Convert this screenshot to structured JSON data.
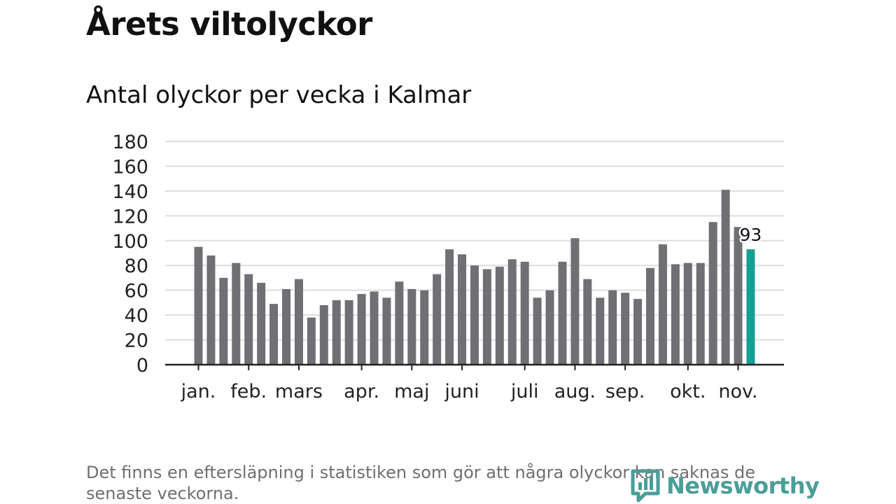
{
  "title": "Årets viltolyckor",
  "subtitle": "Antal olyckor per vecka i Kalmar",
  "footnote": "Det finns en eftersläpning i statistiken som gör att några olyckor kan saknas de senaste veckorna.",
  "brand": {
    "name": "Newsworthy",
    "color": "#4a9e98"
  },
  "colors": {
    "bar": "#706f74",
    "highlight": "#14a092",
    "grid": "#dddddd",
    "axis": "#222222",
    "text": "#222222"
  },
  "chart_data": {
    "type": "bar",
    "values": [
      95,
      88,
      70,
      82,
      73,
      66,
      49,
      61,
      69,
      38,
      48,
      52,
      52,
      57,
      59,
      54,
      67,
      61,
      60,
      73,
      93,
      89,
      80,
      77,
      79,
      85,
      83,
      54,
      60,
      83,
      102,
      69,
      54,
      60,
      58,
      53,
      78,
      97,
      81,
      82,
      82,
      115,
      141,
      111,
      93
    ],
    "highlight_index": 44,
    "highlight_label": "93",
    "ylim": [
      0,
      180
    ],
    "yticks": [
      "0",
      "20",
      "40",
      "60",
      "80",
      "100",
      "120",
      "140",
      "160",
      "180"
    ],
    "month_labels": [
      {
        "label": "jan.",
        "index": 0
      },
      {
        "label": "feb.",
        "index": 4
      },
      {
        "label": "mars",
        "index": 8
      },
      {
        "label": "apr.",
        "index": 13
      },
      {
        "label": "maj",
        "index": 17
      },
      {
        "label": "juni",
        "index": 21
      },
      {
        "label": "juli",
        "index": 26
      },
      {
        "label": "aug.",
        "index": 30
      },
      {
        "label": "sep.",
        "index": 34
      },
      {
        "label": "okt.",
        "index": 39
      },
      {
        "label": "nov.",
        "index": 43
      }
    ],
    "grid": true
  }
}
